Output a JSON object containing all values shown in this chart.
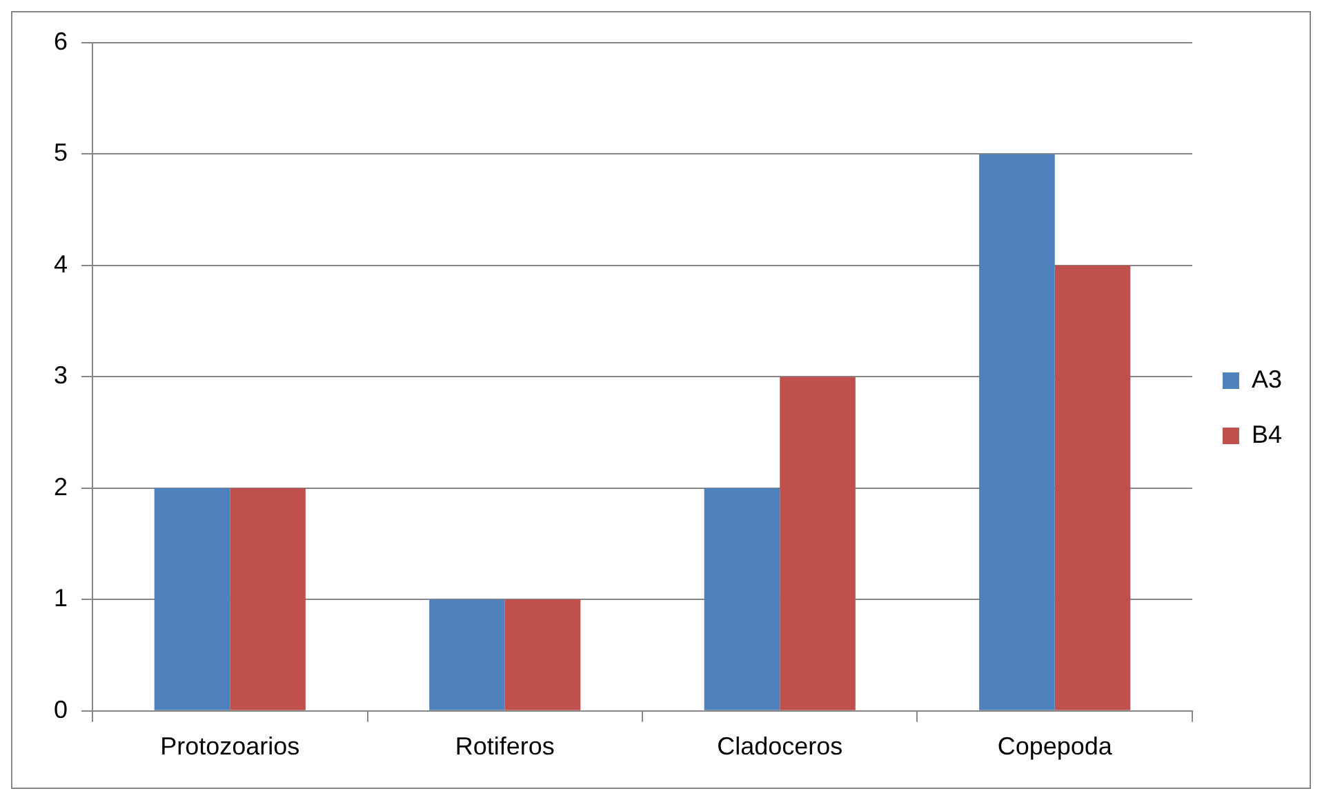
{
  "chart_data": {
    "type": "bar",
    "categories": [
      "Protozoarios",
      "Rotiferos",
      "Cladoceros",
      "Copepoda"
    ],
    "series": [
      {
        "name": "A3",
        "color": "#4f81bd",
        "values": [
          2,
          1,
          2,
          5
        ]
      },
      {
        "name": "B4",
        "color": "#c0504d",
        "values": [
          2,
          1,
          3,
          4
        ]
      }
    ],
    "ylim": [
      0,
      6
    ],
    "yticks": [
      0,
      1,
      2,
      3,
      4,
      5,
      6
    ],
    "grid": "y",
    "legend": "right"
  }
}
